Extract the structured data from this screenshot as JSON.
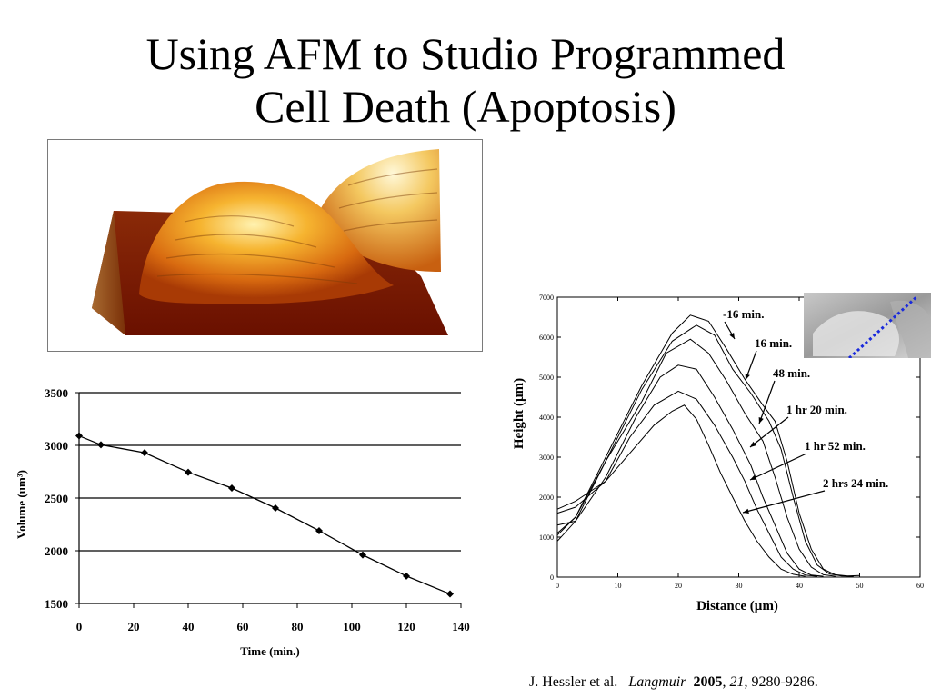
{
  "title": {
    "line1": "Using AFM to Studio Programmed",
    "line2": "Cell Death (Apoptosis)"
  },
  "citation": {
    "authors": "J. Hessler et al.",
    "journal": "Langmuir",
    "year": "2005",
    "volume": "21",
    "pages": "9280-9286."
  },
  "chart_data": [
    {
      "type": "line",
      "title": "",
      "xlabel": "Time (min.)",
      "ylabel": "Volume (um³)",
      "xlim": [
        0,
        140
      ],
      "ylim": [
        1500,
        3500
      ],
      "xticks": [
        "0",
        "20",
        "40",
        "60",
        "80",
        "100",
        "120",
        "140"
      ],
      "yticks": [
        "1500",
        "2000",
        "2500",
        "3000",
        "3500"
      ],
      "grid": "horizontal",
      "series": [
        {
          "marker": "diamond",
          "x": [
            0,
            8,
            24,
            40,
            56,
            72,
            88,
            104,
            120,
            136
          ],
          "y": [
            3090,
            3005,
            2930,
            2745,
            2595,
            2405,
            2190,
            1960,
            1760,
            1590
          ]
        }
      ]
    },
    {
      "type": "line",
      "title": "",
      "xlabel": "Distance (µm)",
      "ylabel": "Height (µm)",
      "xlim": [
        0,
        60
      ],
      "ylim": [
        0,
        7000
      ],
      "xticks": [
        "0",
        "10",
        "20",
        "30",
        "40",
        "50",
        "60"
      ],
      "yticks": [
        "0",
        "1000",
        "2000",
        "3000",
        "4000",
        "5000",
        "6000",
        "7000"
      ],
      "annotations": [
        "-16 min.",
        "16 min.",
        "48 min.",
        "1 hr 20 min.",
        "1 hr 52 min.",
        "2 hrs 24 min."
      ],
      "series": [
        {
          "x": [
            0,
            3,
            8,
            14,
            19,
            22,
            25,
            28,
            31,
            34,
            36,
            38,
            40,
            42,
            44,
            46,
            48,
            50
          ],
          "y": [
            1050,
            1500,
            3000,
            4800,
            6100,
            6550,
            6400,
            5700,
            4950,
            4300,
            3900,
            2900,
            1600,
            700,
            200,
            60,
            30,
            40
          ]
        },
        {
          "x": [
            0,
            3,
            8,
            14,
            19,
            23,
            26,
            29,
            32,
            35,
            37,
            39,
            41,
            43,
            45,
            47,
            49
          ],
          "y": [
            900,
            1400,
            2900,
            4700,
            5900,
            6300,
            6050,
            5200,
            4600,
            3900,
            3200,
            2000,
            900,
            300,
            80,
            30,
            20
          ]
        },
        {
          "x": [
            0,
            3,
            8,
            14,
            18,
            22,
            25,
            28,
            31,
            34,
            36,
            38,
            40,
            42,
            44,
            46
          ],
          "y": [
            1100,
            1500,
            2900,
            4400,
            5600,
            5950,
            5600,
            4900,
            4100,
            3400,
            2500,
            1500,
            700,
            250,
            60,
            20
          ]
        },
        {
          "x": [
            0,
            3,
            8,
            13,
            17,
            20,
            23,
            26,
            29,
            32,
            34,
            36,
            38,
            40,
            42,
            44
          ],
          "y": [
            1300,
            1400,
            2500,
            4000,
            5000,
            5300,
            5200,
            4500,
            3700,
            2800,
            2000,
            1300,
            600,
            200,
            50,
            20
          ]
        },
        {
          "x": [
            0,
            3,
            8,
            12,
            16,
            20,
            23,
            26,
            29,
            31,
            33,
            35,
            37,
            39,
            41,
            43
          ],
          "y": [
            1600,
            1750,
            2400,
            3500,
            4300,
            4650,
            4450,
            3800,
            3000,
            2400,
            1700,
            1100,
            500,
            200,
            50,
            20
          ]
        },
        {
          "x": [
            0,
            3,
            8,
            12,
            16,
            19,
            21,
            23,
            25,
            27,
            29,
            31,
            33,
            35,
            37,
            39,
            41
          ],
          "y": [
            1700,
            1900,
            2400,
            3100,
            3800,
            4150,
            4300,
            3950,
            3300,
            2600,
            2000,
            1400,
            900,
            500,
            200,
            70,
            20
          ]
        }
      ]
    }
  ]
}
